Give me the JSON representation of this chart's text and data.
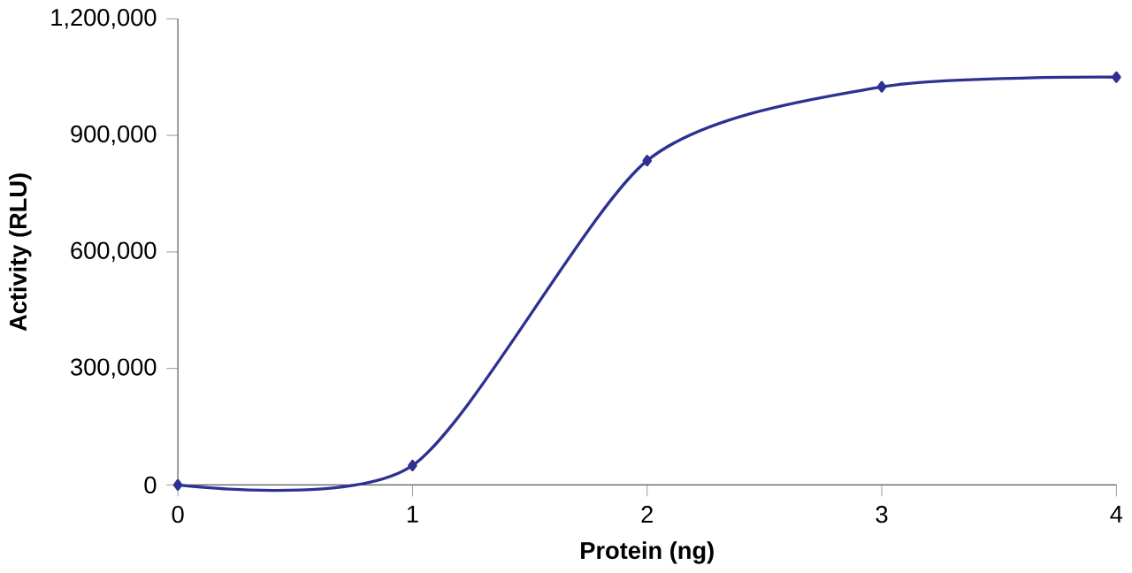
{
  "chart_data": {
    "type": "line",
    "xlabel": "Protein (ng)",
    "ylabel": "Activity (RLU)",
    "x": [
      0,
      1,
      2,
      3,
      4
    ],
    "series": [
      {
        "color": "#2e3192",
        "values": [
          0,
          50000,
          835000,
          1025000,
          1050000
        ]
      }
    ],
    "xlim": [
      0,
      4
    ],
    "xticks": [
      0,
      1,
      2,
      3,
      4
    ],
    "ylim": [
      0,
      1200000
    ],
    "yticks": [
      {
        "value": 0,
        "label": "0"
      },
      {
        "value": 300000,
        "label": "300,000"
      },
      {
        "value": 600000,
        "label": "600,000"
      },
      {
        "value": 900000,
        "label": "900,000"
      },
      {
        "value": 1200000,
        "label": "1,200,000"
      }
    ],
    "grid": false,
    "marker": "diamond",
    "line_style": "solid"
  }
}
